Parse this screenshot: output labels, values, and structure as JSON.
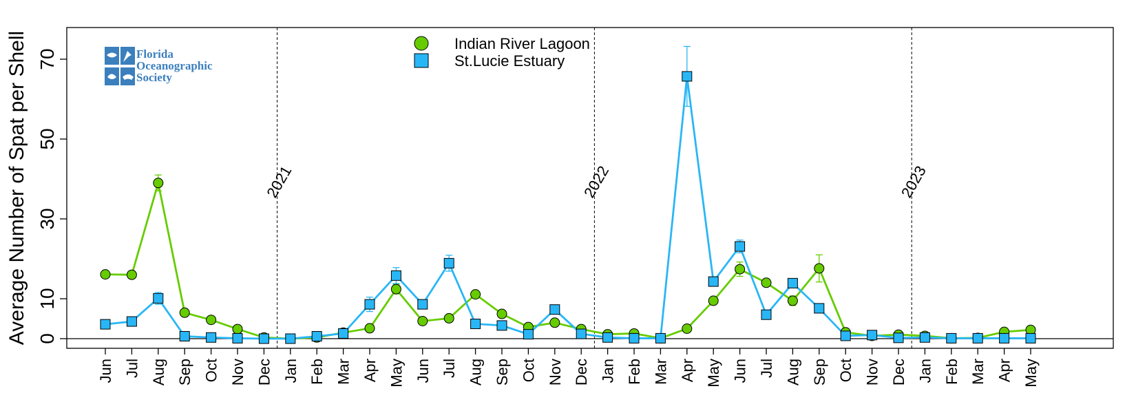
{
  "logo": {
    "lines": [
      "Florida",
      "Oceanographic",
      "Society"
    ]
  },
  "chart_data": {
    "type": "line",
    "ylabel": "Average Number of Spat per Shell",
    "ylim": [
      0,
      70
    ],
    "yticks": [
      0,
      10,
      30,
      50,
      70
    ],
    "categories": [
      "Jun",
      "Jul",
      "Aug",
      "Sep",
      "Oct",
      "Nov",
      "Dec",
      "Jan",
      "Feb",
      "Mar",
      "Apr",
      "May",
      "Jun",
      "Jul",
      "Aug",
      "Sep",
      "Oct",
      "Nov",
      "Dec",
      "Jan",
      "Feb",
      "Mar",
      "Apr",
      "May",
      "Jun",
      "Jul",
      "Aug",
      "Sep",
      "Oct",
      "Nov",
      "Dec",
      "Jan",
      "Feb",
      "Mar",
      "Apr",
      "May"
    ],
    "year_markers": [
      {
        "label": "2021",
        "index": 7
      },
      {
        "label": "2022",
        "index": 19
      },
      {
        "label": "2023",
        "index": 31
      }
    ],
    "legend_position": "top-center",
    "grid": false,
    "series": [
      {
        "name": "Indian River Lagoon",
        "color": "#66cc00",
        "marker": "circle",
        "values": [
          16.1,
          16.0,
          39.0,
          6.5,
          4.7,
          2.4,
          0.3,
          0,
          0.3,
          1.5,
          2.6,
          12.4,
          4.4,
          5.1,
          11.1,
          6.2,
          2.9,
          4.0,
          2.4,
          1.1,
          1.3,
          0.1,
          2.5,
          9.5,
          17.4,
          14.0,
          9.5,
          17.6,
          1.6,
          0.7,
          1.0,
          0.7,
          0.1,
          0.2,
          1.7,
          2.2
        ],
        "error": [
          0.8,
          0,
          2.0,
          0,
          0,
          0,
          0,
          0,
          0,
          0,
          0,
          1.2,
          0,
          0,
          0.8,
          0,
          0,
          0,
          0,
          0,
          0,
          0,
          0,
          0,
          1.8,
          0,
          1.2,
          3.4,
          0,
          0,
          0,
          0,
          0,
          0,
          0,
          0
        ]
      },
      {
        "name": "St.Lucie Estuary",
        "color": "#29b6f6",
        "marker": "square",
        "values": [
          3.6,
          4.3,
          10.1,
          0.6,
          0.3,
          0.1,
          0.0,
          0,
          0.6,
          1.3,
          8.6,
          15.8,
          8.6,
          18.9,
          3.7,
          3.3,
          1.1,
          7.3,
          1.2,
          0.3,
          0.1,
          0.1,
          65.7,
          14.3,
          23.1,
          6.0,
          13.9,
          7.6,
          0.7,
          0.9,
          0.2,
          0.3,
          0.1,
          0.1,
          0.1,
          0.1
        ],
        "error": [
          0,
          0,
          1.5,
          0,
          0,
          0,
          0,
          0,
          0,
          0,
          1.8,
          2.0,
          0,
          2.0,
          0,
          0,
          0,
          0,
          0,
          0,
          0,
          0,
          7.5,
          0,
          1.6,
          0,
          1.0,
          0,
          0,
          0,
          0,
          0,
          0,
          0,
          0,
          0
        ]
      }
    ]
  }
}
